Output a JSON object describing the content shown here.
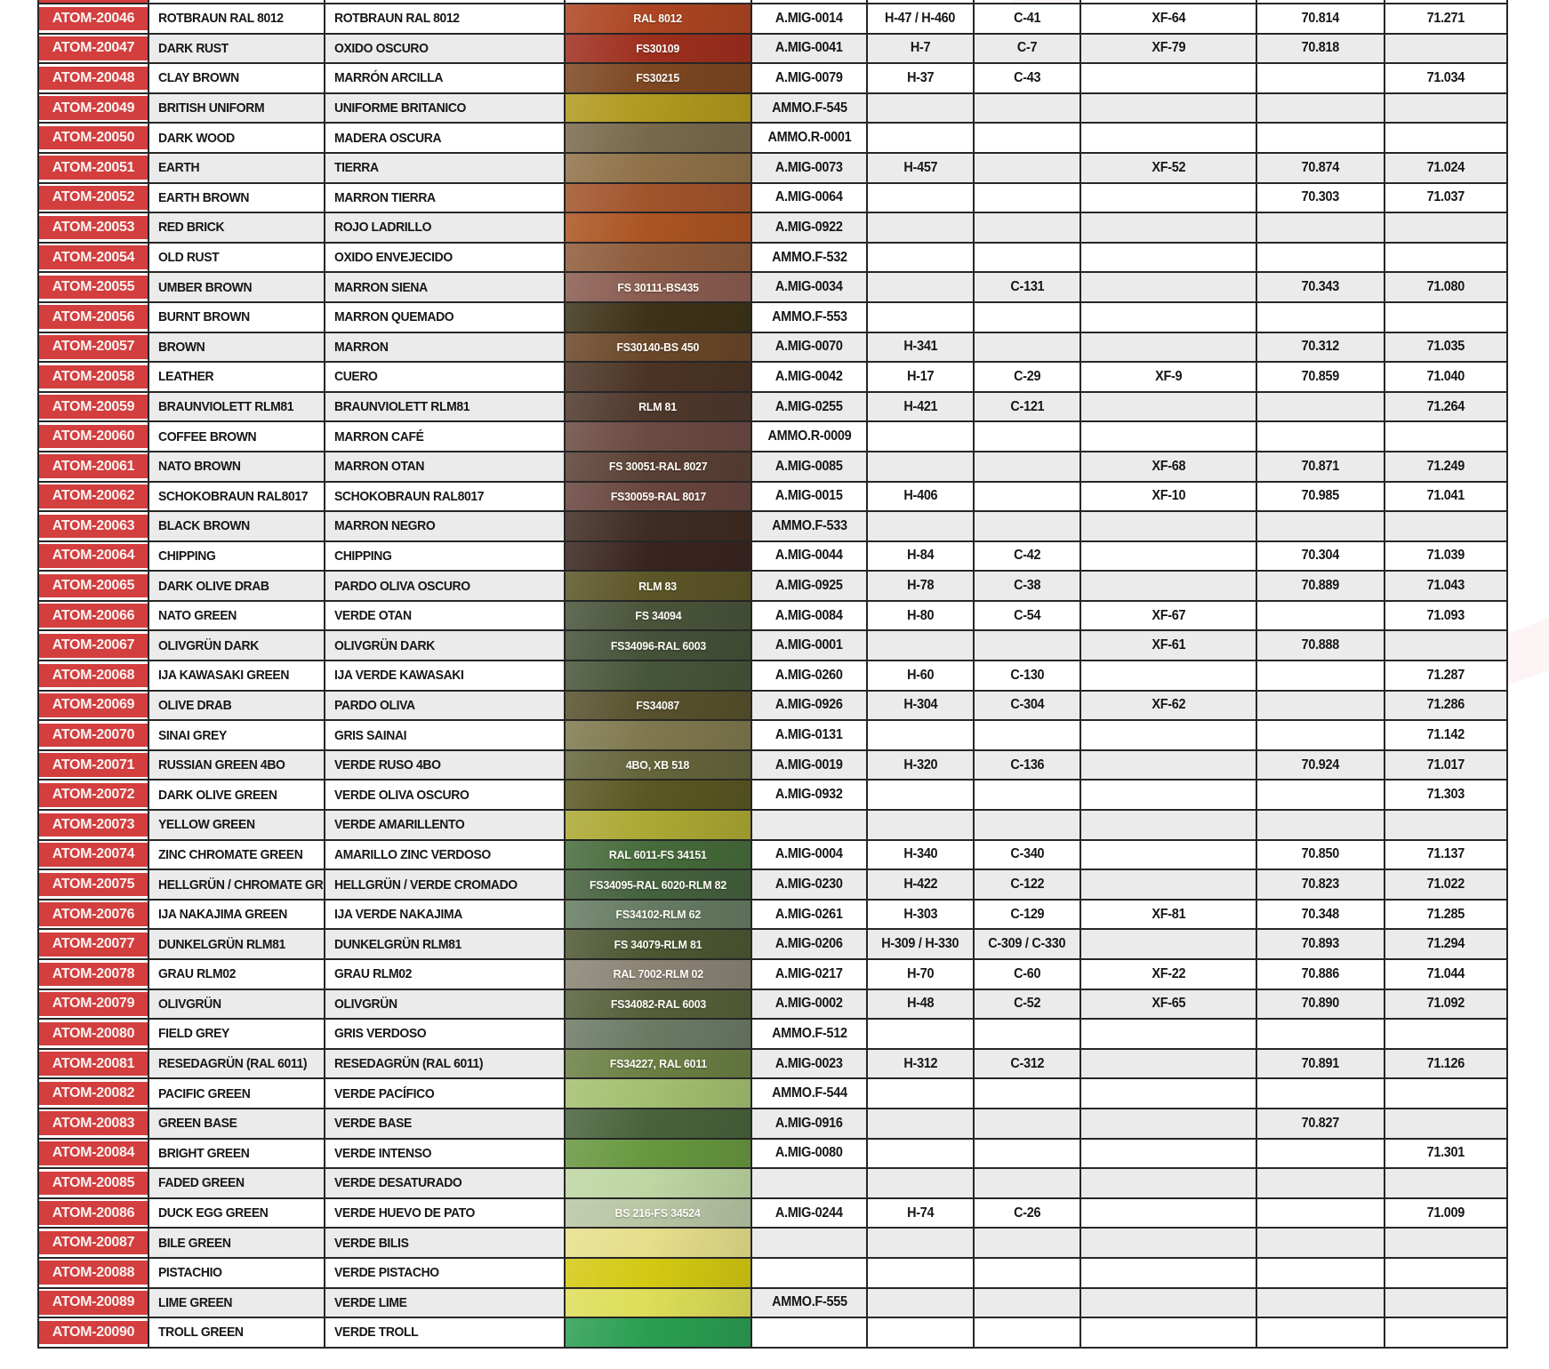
{
  "colors": {
    "accent_red": "#D33E3E",
    "row_white": "#FFFFFF",
    "row_alt_gray": "#EBEBEB",
    "border": "#262626",
    "code_text": "#FAF3F2",
    "swatch_label_text": "#FDFBF6"
  },
  "watermark": {
    "letters": "MTC",
    "sub": "HOBBY",
    "ring_icon": "registered-circle"
  },
  "table": {
    "columns": [
      "atom-code",
      "name-english",
      "name-spanish",
      "color-swatch-reference",
      "ammo-mig",
      "h-code",
      "c-code",
      "xf-code",
      "vallejo-70",
      "vallejo-71"
    ],
    "rows": [
      {
        "code": "ATOM-20046",
        "en": "ROTBRAUN RAL 8012",
        "es": "ROTBRAUN RAL 8012",
        "ref": "RAL 8012",
        "color": "#AC4522",
        "amig": "A.MIG-0014",
        "h": "H-47 / H-460",
        "c": "C-41",
        "xf": "XF-64",
        "v70": "70.814",
        "v71": "71.271"
      },
      {
        "code": "ATOM-20047",
        "en": "DARK RUST",
        "es": "OXIDO OSCURO",
        "ref": "FS30109",
        "color": "#9E2F1E",
        "amig": "A.MIG-0041",
        "h": "H-7",
        "c": "C-7",
        "xf": "XF-79",
        "v70": "70.818",
        "v71": ""
      },
      {
        "code": "ATOM-20048",
        "en": "CLAY BROWN",
        "es": "MARRÓN ARCILLA",
        "ref": "FS30215",
        "color": "#7D4721",
        "amig": "A.MIG-0079",
        "h": "H-37",
        "c": "C-43",
        "xf": "",
        "v70": "",
        "v71": "71.034"
      },
      {
        "code": "ATOM-20049",
        "en": "BRITISH UNIFORM",
        "es": "UNIFORME BRITANICO",
        "ref": "",
        "color": "#B0991F",
        "amig": "AMMO.F-545",
        "h": "",
        "c": "",
        "xf": "",
        "v70": "",
        "v71": ""
      },
      {
        "code": "ATOM-20050",
        "en": "DARK WOOD",
        "es": "MADERA OSCURA",
        "ref": "",
        "color": "#79694C",
        "amig": "AMMO.R-0001",
        "h": "",
        "c": "",
        "xf": "",
        "v70": "",
        "v71": ""
      },
      {
        "code": "ATOM-20051",
        "en": "EARTH",
        "es": "TIERRA",
        "ref": "",
        "color": "#8F7148",
        "amig": "A.MIG-0073",
        "h": "H-457",
        "c": "",
        "xf": "XF-52",
        "v70": "70.874",
        "v71": "71.024"
      },
      {
        "code": "ATOM-20052",
        "en": "EARTH BROWN",
        "es": "MARRON TIERRA",
        "ref": "",
        "color": "#A2542C",
        "amig": "A.MIG-0064",
        "h": "",
        "c": "",
        "xf": "",
        "v70": "70.303",
        "v71": "71.037"
      },
      {
        "code": "ATOM-20053",
        "en": "RED BRICK",
        "es": "ROJO LADRILLO",
        "ref": "",
        "color": "#AB5422",
        "amig": "A.MIG-0922",
        "h": "",
        "c": "",
        "xf": "",
        "v70": "",
        "v71": ""
      },
      {
        "code": "ATOM-20054",
        "en": "OLD RUST",
        "es": "OXIDO ENVEJECIDO",
        "ref": "",
        "color": "#8F5B3B",
        "amig": "AMMO.F-532",
        "h": "",
        "c": "",
        "xf": "",
        "v70": "",
        "v71": ""
      },
      {
        "code": "ATOM-20055",
        "en": "UMBER BROWN",
        "es": "MARRON SIENA",
        "ref": "FS 30111-BS435",
        "color": "#8A5C50",
        "amig": "A.MIG-0034",
        "h": "",
        "c": "C-131",
        "xf": "",
        "v70": "70.343",
        "v71": "71.080"
      },
      {
        "code": "ATOM-20056",
        "en": "BURNT BROWN",
        "es": "MARRON QUEMADO",
        "ref": "",
        "color": "#3D3318",
        "amig": "AMMO.F-553",
        "h": "",
        "c": "",
        "xf": "",
        "v70": "",
        "v71": ""
      },
      {
        "code": "ATOM-20057",
        "en": "BROWN",
        "es": "MARRON",
        "ref": "FS30140-BS 450",
        "color": "#6A4729",
        "amig": "A.MIG-0070",
        "h": "H-341",
        "c": "",
        "xf": "",
        "v70": "70.312",
        "v71": "71.035"
      },
      {
        "code": "ATOM-20058",
        "en": "LEATHER",
        "es": "CUERO",
        "ref": "",
        "color": "#4B3425",
        "amig": "A.MIG-0042",
        "h": "H-17",
        "c": "C-29",
        "xf": "XF-9",
        "v70": "70.859",
        "v71": "71.040"
      },
      {
        "code": "ATOM-20059",
        "en": "BRAUNVIOLETT RLM81",
        "es": "BRAUNVIOLETT RLM81",
        "ref": "RLM 81",
        "color": "#4F382C",
        "amig": "A.MIG-0255",
        "h": "H-421",
        "c": "C-121",
        "xf": "",
        "v70": "",
        "v71": "71.264"
      },
      {
        "code": "ATOM-20060",
        "en": "COFFEE BROWN",
        "es": "MARRON CAFÉ",
        "ref": "",
        "color": "#6B4A42",
        "amig": "AMMO.R-0009",
        "h": "",
        "c": "",
        "xf": "",
        "v70": "",
        "v71": ""
      },
      {
        "code": "ATOM-20061",
        "en": "NATO BROWN",
        "es": "MARRON OTAN",
        "ref": "FS 30051-RAL 8027",
        "color": "#5A4034",
        "amig": "A.MIG-0085",
        "h": "",
        "c": "",
        "xf": "XF-68",
        "v70": "70.871",
        "v71": "71.249"
      },
      {
        "code": "ATOM-20062",
        "en": "SCHOKOBRAUN RAL8017",
        "es": "SCHOKOBRAUN RAL8017",
        "ref": "FS30059-RAL 8017",
        "color": "#68453E",
        "amig": "A.MIG-0015",
        "h": "H-406",
        "c": "",
        "xf": "XF-10",
        "v70": "70.985",
        "v71": "71.041"
      },
      {
        "code": "ATOM-20063",
        "en": "BLACK BROWN",
        "es": "MARRON NEGRO",
        "ref": "",
        "color": "#3F2C22",
        "amig": "AMMO.F-533",
        "h": "",
        "c": "",
        "xf": "",
        "v70": "",
        "v71": ""
      },
      {
        "code": "ATOM-20064",
        "en": "CHIPPING",
        "es": "CHIPPING",
        "ref": "",
        "color": "#3A2420",
        "amig": "A.MIG-0044",
        "h": "H-84",
        "c": "C-42",
        "xf": "",
        "v70": "70.304",
        "v71": "71.039"
      },
      {
        "code": "ATOM-20065",
        "en": "DARK OLIVE DRAB",
        "es": "PARDO OLIVA OSCURO",
        "ref": "RLM 83",
        "color": "#5C5527",
        "amig": "A.MIG-0925",
        "h": "H-78",
        "c": "C-38",
        "xf": "",
        "v70": "70.889",
        "v71": "71.043"
      },
      {
        "code": "ATOM-20066",
        "en": "NATO GREEN",
        "es": "VERDE OTAN",
        "ref": "FS 34094",
        "color": "#49543A",
        "amig": "A.MIG-0084",
        "h": "H-80",
        "c": "C-54",
        "xf": "XF-67",
        "v70": "",
        "v71": "71.093"
      },
      {
        "code": "ATOM-20067",
        "en": "OLIVGRÜN DARK",
        "es": "OLIVGRÜN DARK",
        "ref": "FS34096-RAL 6003",
        "color": "#455138",
        "amig": "A.MIG-0001",
        "h": "",
        "c": "",
        "xf": "XF-61",
        "v70": "70.888",
        "v71": ""
      },
      {
        "code": "ATOM-20068",
        "en": "IJA KAWASAKI GREEN",
        "es": "IJA VERDE KAWASAKI",
        "ref": "",
        "color": "#475538",
        "amig": "A.MIG-0260",
        "h": "H-60",
        "c": "C-130",
        "xf": "",
        "v70": "",
        "v71": "71.287"
      },
      {
        "code": "ATOM-20069",
        "en": "OLIVE DRAB",
        "es": "PARDO OLIVA",
        "ref": "FS34087",
        "color": "#57512D",
        "amig": "A.MIG-0926",
        "h": "H-304",
        "c": "C-304",
        "xf": "XF-62",
        "v70": "",
        "v71": "71.286"
      },
      {
        "code": "ATOM-20070",
        "en": "SINAI GREY",
        "es": "GRIS SAINAI",
        "ref": "",
        "color": "#7F784E",
        "amig": "A.MIG-0131",
        "h": "",
        "c": "",
        "xf": "",
        "v70": "",
        "v71": "71.142"
      },
      {
        "code": "ATOM-20071",
        "en": "RUSSIAN GREEN 4BO",
        "es": "VERDE RUSO 4BO",
        "ref": "4BO, XB 518",
        "color": "#64653C",
        "amig": "A.MIG-0019",
        "h": "H-320",
        "c": "C-136",
        "xf": "",
        "v70": "70.924",
        "v71": "71.017"
      },
      {
        "code": "ATOM-20072",
        "en": "DARK OLIVE GREEN",
        "es": "VERDE OLIVA OSCURO",
        "ref": "",
        "color": "#5A5722",
        "amig": "A.MIG-0932",
        "h": "",
        "c": "",
        "xf": "",
        "v70": "",
        "v71": "71.303"
      },
      {
        "code": "ATOM-20073",
        "en": "YELLOW GREEN",
        "es": "VERDE AMARILLENTO",
        "ref": "",
        "color": "#ACA833",
        "amig": "",
        "h": "",
        "c": "",
        "xf": "",
        "v70": "",
        "v71": ""
      },
      {
        "code": "ATOM-20074",
        "en": "ZINC CHROMATE GREEN",
        "es": "AMARILLO ZINC VERDOSO",
        "ref": "RAL 6011-FS 34151",
        "color": "#466B3B",
        "amig": "A.MIG-0004",
        "h": "H-340",
        "c": "C-340",
        "xf": "",
        "v70": "70.850",
        "v71": "71.137"
      },
      {
        "code": "ATOM-20075",
        "en": "HELLGRÜN / CHROMATE GREEN",
        "es": "HELLGRÜN / VERDE CROMADO",
        "ref": "FS34095-RAL 6020-RLM 82",
        "color": "#44613D",
        "amig": "A.MIG-0230",
        "h": "H-422",
        "c": "C-122",
        "xf": "",
        "v70": "70.823",
        "v71": "71.022"
      },
      {
        "code": "ATOM-20076",
        "en": "IJA NAKAJIMA GREEN",
        "es": "IJA VERDE NAKAJIMA",
        "ref": "FS34102-RLM 62",
        "color": "#667B61",
        "amig": "A.MIG-0261",
        "h": "H-303",
        "c": "C-129",
        "xf": "XF-81",
        "v70": "70.348",
        "v71": "71.285"
      },
      {
        "code": "ATOM-20077",
        "en": "DUNKELGRÜN RLM81",
        "es": "DUNKELGRÜN RLM81",
        "ref": "FS 34079-RLM 81",
        "color": "#4D5732",
        "amig": "A.MIG-0206",
        "h": "H-309 / H-330",
        "c": "C-309 / C-330",
        "xf": "",
        "v70": "70.893",
        "v71": "71.294"
      },
      {
        "code": "ATOM-20078",
        "en": "GRAU RLM02",
        "es": "GRAU RLM02",
        "ref": "RAL 7002-RLM 02",
        "color": "#8A8374",
        "amig": "A.MIG-0217",
        "h": "H-70",
        "c": "C-60",
        "xf": "XF-22",
        "v70": "70.886",
        "v71": "71.044"
      },
      {
        "code": "ATOM-20079",
        "en": "OLIVGRÜN",
        "es": "OLIVGRÜN",
        "ref": "FS34082-RAL 6003",
        "color": "#55603A",
        "amig": "A.MIG-0002",
        "h": "H-48",
        "c": "C-52",
        "xf": "XF-65",
        "v70": "70.890",
        "v71": "71.092"
      },
      {
        "code": "ATOM-20080",
        "en": "FIELD GREY",
        "es": "GRIS VERDOSO",
        "ref": "",
        "color": "#6C7A64",
        "amig": "AMMO.F-512",
        "h": "",
        "c": "",
        "xf": "",
        "v70": "",
        "v71": ""
      },
      {
        "code": "ATOM-20081",
        "en": "RESEDAGRÜN (RAL 6011)",
        "es": "RESEDAGRÜN (RAL 6011)",
        "ref": "FS34227, RAL 6011",
        "color": "#6B7F44",
        "amig": "A.MIG-0023",
        "h": "H-312",
        "c": "C-312",
        "xf": "",
        "v70": "70.891",
        "v71": "71.126"
      },
      {
        "code": "ATOM-20082",
        "en": "PACIFIC GREEN",
        "es": "VERDE PACÍFICO",
        "ref": "",
        "color": "#A3BF70",
        "amig": "AMMO.F-544",
        "h": "",
        "c": "",
        "xf": "",
        "v70": "",
        "v71": ""
      },
      {
        "code": "ATOM-20083",
        "en": "GREEN BASE",
        "es": "VERDE BASE",
        "ref": "",
        "color": "#48633B",
        "amig": "A.MIG-0916",
        "h": "",
        "c": "",
        "xf": "",
        "v70": "70.827",
        "v71": ""
      },
      {
        "code": "ATOM-20084",
        "en": "BRIGHT GREEN",
        "es": "VERDE INTENSO",
        "ref": "",
        "color": "#67973F",
        "amig": "A.MIG-0080",
        "h": "",
        "c": "",
        "xf": "",
        "v70": "",
        "v71": "71.301"
      },
      {
        "code": "ATOM-20085",
        "en": "FADED GREEN",
        "es": "VERDE DESATURADO",
        "ref": "",
        "color": "#BDD6A2",
        "amig": "",
        "h": "",
        "c": "",
        "xf": "",
        "v70": "",
        "v71": ""
      },
      {
        "code": "ATOM-20086",
        "en": "DUCK EGG GREEN",
        "es": "VERDE HUEVO DE PATO",
        "ref": "BS 216-FS 34524",
        "color": "#B8C6A4",
        "amig": "A.MIG-0244",
        "h": "H-74",
        "c": "C-26",
        "xf": "",
        "v70": "",
        "v71": "71.009"
      },
      {
        "code": "ATOM-20087",
        "en": "BILE GREEN",
        "es": "VERDE BILIS",
        "ref": "",
        "color": "#E6DE8A",
        "amig": "",
        "h": "",
        "c": "",
        "xf": "",
        "v70": "",
        "v71": ""
      },
      {
        "code": "ATOM-20088",
        "en": "PISTACHIO",
        "es": "VERDE PISTACHO",
        "ref": "",
        "color": "#D3C912",
        "amig": "",
        "h": "",
        "c": "",
        "xf": "",
        "v70": "",
        "v71": ""
      },
      {
        "code": "ATOM-20089",
        "en": "LIME GREEN",
        "es": "VERDE LIME",
        "ref": "",
        "color": "#DDDD58",
        "amig": "AMMO.F-555",
        "h": "",
        "c": "",
        "xf": "",
        "v70": "",
        "v71": ""
      },
      {
        "code": "ATOM-20090",
        "en": "TROLL GREEN",
        "es": "VERDE TROLL",
        "ref": "",
        "color": "#2B9E52",
        "amig": "",
        "h": "",
        "c": "",
        "xf": "",
        "v70": "",
        "v71": ""
      }
    ]
  }
}
